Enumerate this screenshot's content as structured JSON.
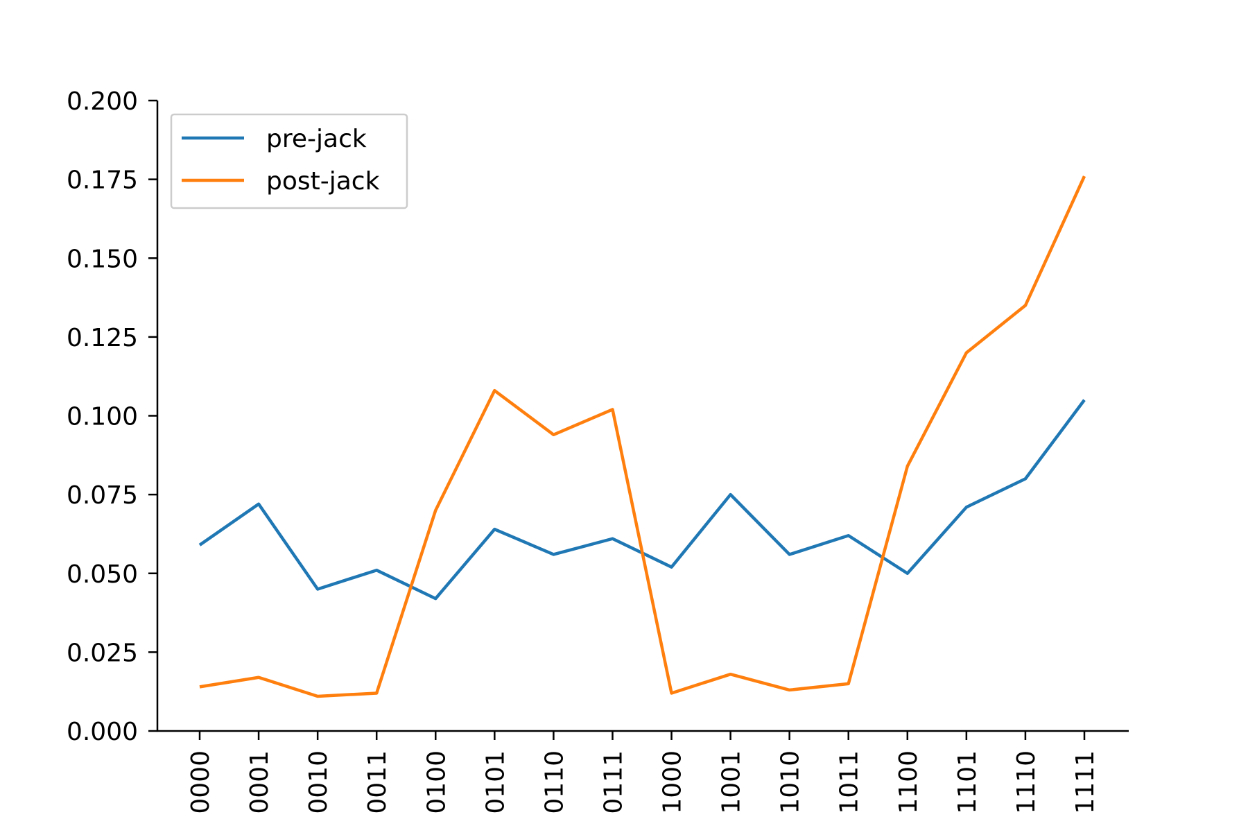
{
  "chart_data": {
    "type": "line",
    "categories": [
      "0000",
      "0001",
      "0010",
      "0011",
      "0100",
      "0101",
      "0110",
      "0111",
      "1000",
      "1001",
      "1010",
      "1011",
      "1100",
      "1101",
      "1110",
      "1111"
    ],
    "series": [
      {
        "name": "pre-jack",
        "color": "#1f77b4",
        "values": [
          0.059,
          0.072,
          0.045,
          0.051,
          0.042,
          0.064,
          0.056,
          0.061,
          0.052,
          0.075,
          0.056,
          0.062,
          0.05,
          0.071,
          0.08,
          0.105
        ]
      },
      {
        "name": "post-jack",
        "color": "#ff7f0e",
        "values": [
          0.014,
          0.017,
          0.011,
          0.012,
          0.07,
          0.108,
          0.094,
          0.102,
          0.012,
          0.018,
          0.013,
          0.015,
          0.084,
          0.12,
          0.135,
          0.176
        ]
      }
    ],
    "yticks": [
      "0.000",
      "0.025",
      "0.050",
      "0.075",
      "0.100",
      "0.125",
      "0.150",
      "0.175",
      "0.200"
    ],
    "ylim": [
      0,
      0.2
    ],
    "title": "",
    "xlabel": "",
    "ylabel": "",
    "legend_position": "top-left",
    "grid": false
  }
}
